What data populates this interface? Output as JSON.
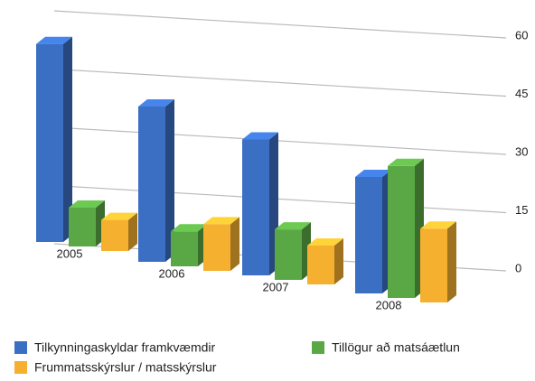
{
  "chart_data": {
    "type": "bar3d",
    "categories": [
      "2005",
      "2006",
      "2007",
      "2008"
    ],
    "series": [
      {
        "name": "Tilkynningaskyldar framkvæmdir",
        "color": "#3a6fc4",
        "values": [
          51,
          40,
          35,
          30
        ]
      },
      {
        "name": "Tillögur að matsáætlun",
        "color": "#5aa845",
        "values": [
          10,
          9,
          13,
          34
        ]
      },
      {
        "name": "Frummatsskýrslur / matsskýrslur",
        "color": "#f5b030",
        "values": [
          8,
          12,
          10,
          19
        ]
      }
    ],
    "ylim": [
      0,
      60
    ],
    "yticks": [
      0,
      15,
      30,
      45,
      60
    ],
    "grid": true
  }
}
